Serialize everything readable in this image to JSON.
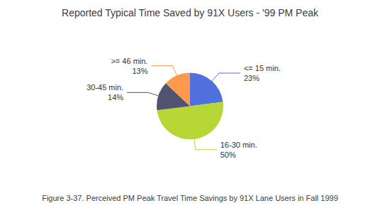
{
  "chart_data": {
    "type": "pie",
    "title": "Reported Typical Time Saved by 91X Users - '99 PM Peak",
    "caption": "Figure 3-37. Perceived PM Peak Travel Time Savings by 91X Lane Users in Fall 1999",
    "categories": [
      "<= 15 min.",
      "16-30 min.",
      "30-45 min.",
      ">= 46 min."
    ],
    "values": [
      23,
      50,
      14,
      13
    ],
    "value_labels": [
      "23%",
      "50%",
      "14%",
      "13%"
    ],
    "data_labels": true,
    "legend": false
  }
}
